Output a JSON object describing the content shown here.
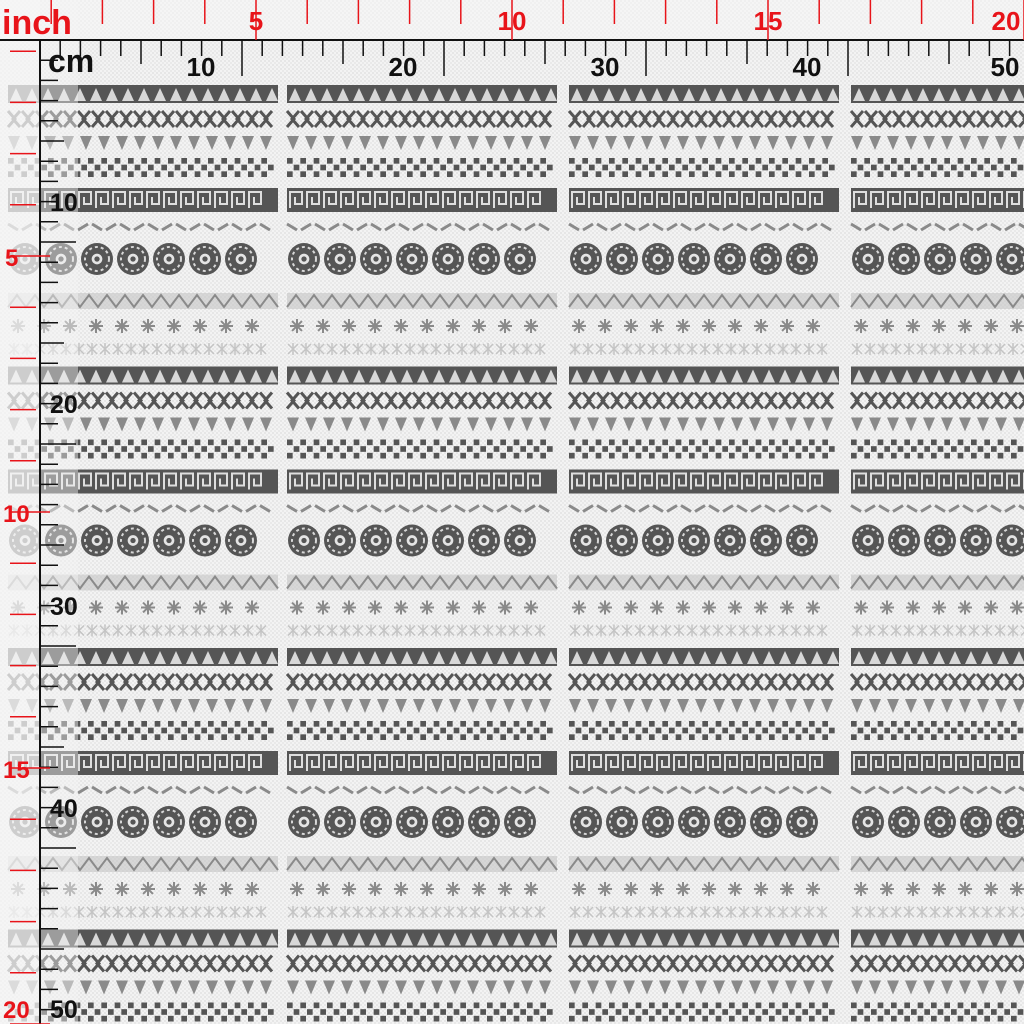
{
  "ruler": {
    "inch_unit_label": "inch",
    "cm_unit_label": "cm",
    "inch_top_labels": [
      "5",
      "10",
      "15",
      "20"
    ],
    "cm_top_labels": [
      "10",
      "20",
      "30",
      "40",
      "50"
    ],
    "inch_left_labels": [
      "5",
      "10",
      "15",
      "20"
    ],
    "cm_left_labels": [
      "10",
      "20",
      "30",
      "40",
      "50"
    ],
    "inch_color": "#e8141a",
    "cm_color": "#111111"
  },
  "fabric": {
    "background_color": "#f3f3f3",
    "pattern_dark": "#555555",
    "pattern_mid": "#8a8a8a",
    "pattern_light": "#c4c4c4",
    "band_motifs": [
      "triangles",
      "chevrons",
      "small-triangles",
      "checks",
      "greek-key",
      "dashes",
      "medallions",
      "zigzag",
      "snowflakes",
      "asterisks"
    ]
  }
}
